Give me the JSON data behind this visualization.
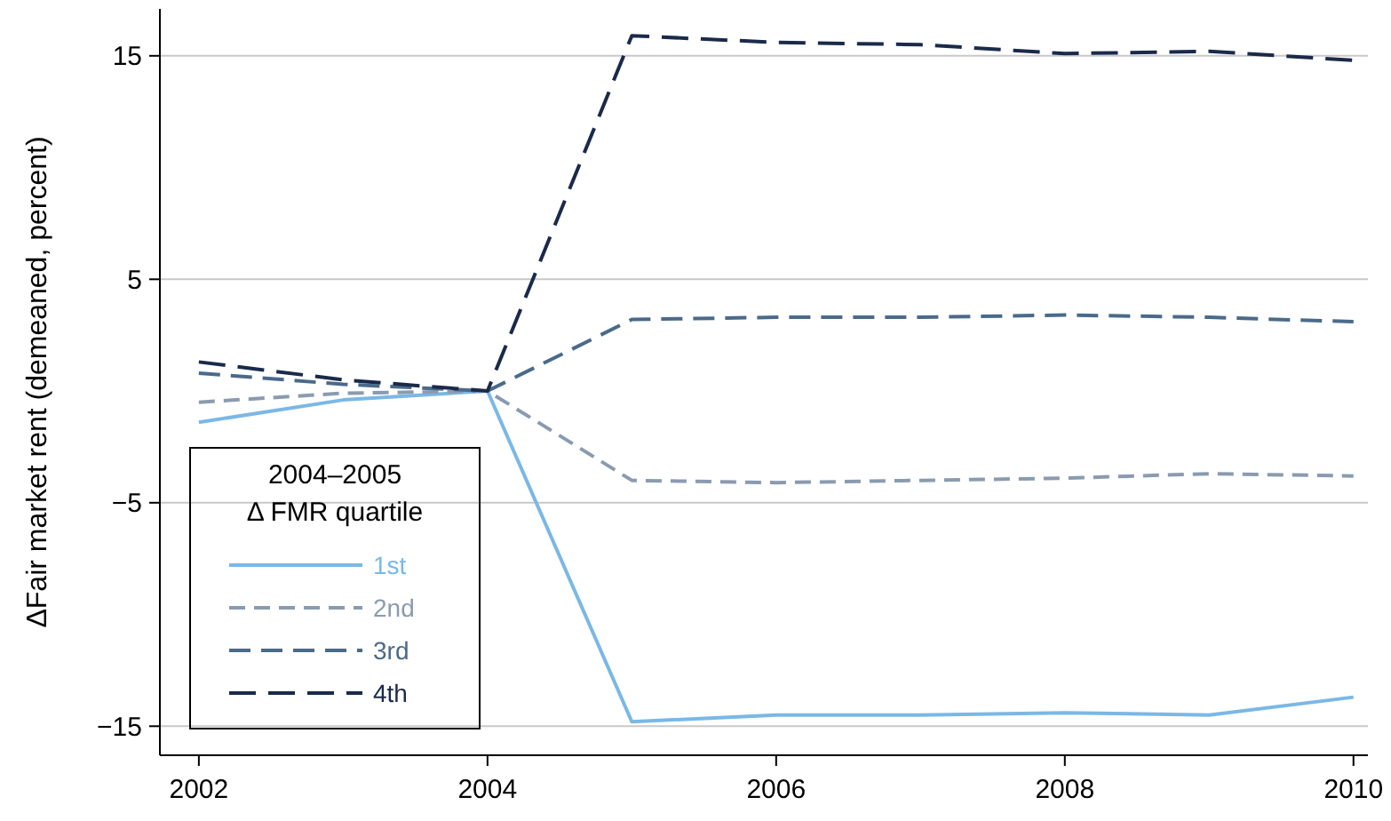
{
  "chart_data": {
    "type": "line",
    "ylabel": "ΔFair market rent (demeaned, percent)",
    "legend_title": "2004–2005\nΔ FMR quartile",
    "legend": "bottom left",
    "grid": "y",
    "marker": "none",
    "x": [
      2002,
      2003,
      2004,
      2005,
      2006,
      2007,
      2008,
      2009,
      2010
    ],
    "xlim": [
      2001.73,
      2010.1
    ],
    "xticks": [
      2002,
      2004,
      2006,
      2008,
      2010
    ],
    "ylim": [
      -16.3,
      17.1
    ],
    "yticks": [
      -15,
      -5,
      5,
      15
    ],
    "series": [
      {
        "name": "1st",
        "color": "#7ab8e6",
        "line_style": "solid",
        "values": [
          -1.4,
          -0.4,
          0,
          -14.8,
          -14.5,
          -14.5,
          -14.4,
          -14.5,
          -13.7
        ]
      },
      {
        "name": "2nd",
        "color": "#8a9bb0",
        "line_style": "dashed",
        "values": [
          -0.5,
          -0.1,
          0,
          -4.0,
          -4.1,
          -4.0,
          -3.9,
          -3.7,
          -3.8
        ]
      },
      {
        "name": "3rd",
        "color": "#4a6a8a",
        "line_style": "dashed",
        "values": [
          0.8,
          0.3,
          0,
          3.2,
          3.3,
          3.3,
          3.4,
          3.3,
          3.1
        ]
      },
      {
        "name": "4th",
        "color": "#1a2a4a",
        "line_style": "dashed",
        "values": [
          1.3,
          0.5,
          0,
          15.9,
          15.6,
          15.5,
          15.1,
          15.2,
          14.8
        ]
      }
    ]
  }
}
